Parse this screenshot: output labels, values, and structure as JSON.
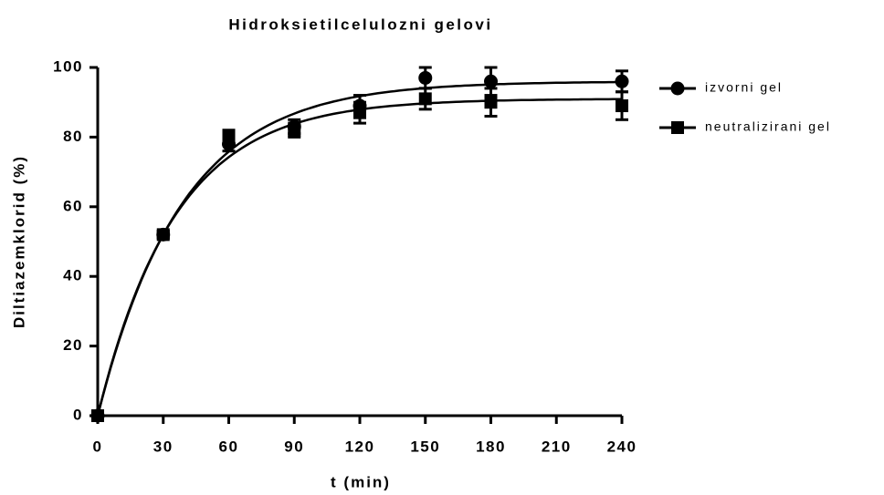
{
  "chart_data": {
    "type": "scatter",
    "title": "Hidroksietilcelulozni gelovi",
    "x_label": "t (min)",
    "y_label": "Diltiazemklorid  (%)",
    "x": [
      0,
      30,
      60,
      90,
      120,
      150,
      180,
      240
    ],
    "series": [
      {
        "name": "izvorni gel",
        "color": "#000000",
        "marker": "circle",
        "values": [
          0,
          52,
          78,
          83,
          89,
          97,
          96,
          96
        ],
        "errors": [
          0,
          1,
          2,
          2,
          3,
          3,
          4,
          3
        ],
        "fit": {
          "plateau": 96,
          "rate": 0.026
        }
      },
      {
        "name": "neutralizirani gel",
        "color": "#000000",
        "marker": "square",
        "values": [
          0,
          52,
          80,
          82,
          87,
          91,
          90,
          89
        ],
        "errors": [
          0,
          1,
          2,
          2,
          3,
          3,
          4,
          4
        ],
        "fit": {
          "plateau": 91,
          "rate": 0.0282
        }
      }
    ],
    "xlim": [
      0,
      240
    ],
    "xticks": [
      0,
      30,
      60,
      90,
      120,
      150,
      180,
      210,
      240
    ],
    "ylim": [
      0,
      100
    ],
    "yticks": [
      0,
      20,
      40,
      60,
      80,
      100
    ],
    "legend": "right"
  }
}
